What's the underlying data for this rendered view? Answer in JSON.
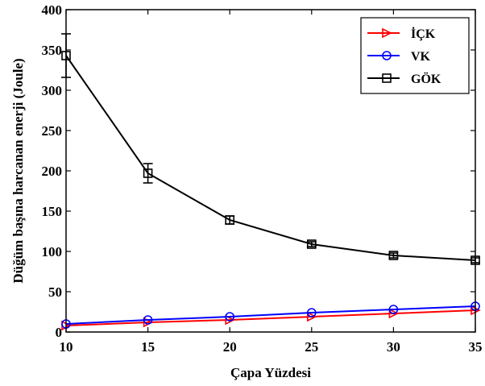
{
  "chart_data": {
    "type": "line",
    "title": "",
    "xlabel": "Çapa  Yüzdesi",
    "ylabel": "Düğüm başına harcanan enerji (Joule)",
    "x": [
      10,
      15,
      20,
      25,
      30,
      35
    ],
    "xlim": [
      10,
      35
    ],
    "ylim": [
      0,
      400
    ],
    "xticks": [
      "10",
      "15",
      "20",
      "25",
      "30",
      "35"
    ],
    "yticks": [
      "0",
      "50",
      "100",
      "150",
      "200",
      "250",
      "300",
      "350",
      "400"
    ],
    "grid": false,
    "legend_position": "top-right",
    "series": [
      {
        "name": "İÇK",
        "color": "#ff0000",
        "marker": "triangle-right",
        "values": [
          8,
          12,
          15,
          19,
          23,
          27
        ]
      },
      {
        "name": "VK",
        "color": "#0000ff",
        "marker": "circle",
        "values": [
          10,
          15,
          19,
          24,
          28,
          32
        ]
      },
      {
        "name": "GÖK",
        "color": "#000000",
        "marker": "square",
        "values": [
          343,
          197,
          139,
          109,
          95,
          89
        ],
        "error": [
          27,
          12,
          5,
          3,
          3,
          3
        ]
      }
    ]
  }
}
